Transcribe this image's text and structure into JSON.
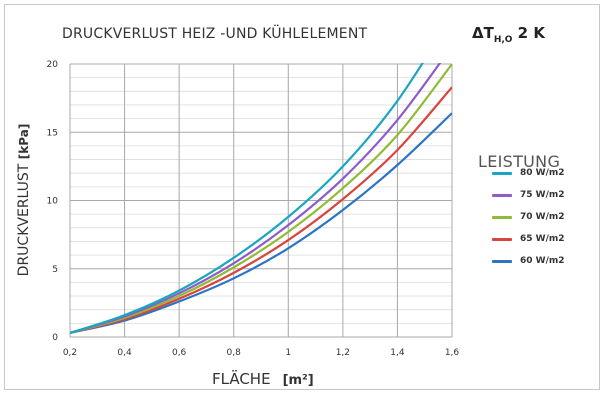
{
  "chart_data": {
    "type": "line",
    "title": "DRUCKVERLUST HEIZ -UND KÜHLELEMENT",
    "title_right": {
      "main": "ΔT",
      "sub": "H,O",
      "value": " 2 K"
    },
    "ylabel": "DRUCKVERLUST",
    "ylabel_unit": "[kPa]",
    "xlabel": "FLÄCHE",
    "xlabel_unit": "[m²]",
    "xlim": [
      0.2,
      1.6
    ],
    "ylim": [
      0,
      20
    ],
    "x_ticks": [
      "0,2",
      "0,4",
      "0,6",
      "0,8",
      "1",
      "1,2",
      "1,4",
      "1,6"
    ],
    "y_ticks": [
      "0",
      "5",
      "10",
      "15",
      "20"
    ],
    "grid": true,
    "legend_title": "LEISTUNG",
    "legend_position": "right",
    "x": [
      0.2,
      0.4,
      0.6,
      0.8,
      1.0,
      1.2,
      1.4,
      1.6
    ],
    "series": [
      {
        "name": "80 W/m2",
        "color": "#1aa6c0",
        "values": [
          0.3,
          1.6,
          3.4,
          5.8,
          8.8,
          12.5,
          17.3,
          23.5
        ]
      },
      {
        "name": "75 W/m2",
        "color": "#8e5cc8",
        "values": [
          0.3,
          1.5,
          3.2,
          5.4,
          8.2,
          11.6,
          15.9,
          21.3
        ]
      },
      {
        "name": "70 W/m2",
        "color": "#8fbc34",
        "values": [
          0.3,
          1.4,
          3.0,
          5.1,
          7.7,
          10.9,
          14.8,
          20.0
        ]
      },
      {
        "name": "65 W/m2",
        "color": "#d9443e",
        "values": [
          0.3,
          1.3,
          2.8,
          4.7,
          7.1,
          10.1,
          13.7,
          18.3
        ]
      },
      {
        "name": "60 W/m2",
        "color": "#2c74c4",
        "values": [
          0.3,
          1.2,
          2.6,
          4.3,
          6.5,
          9.3,
          12.6,
          16.4
        ]
      }
    ]
  }
}
